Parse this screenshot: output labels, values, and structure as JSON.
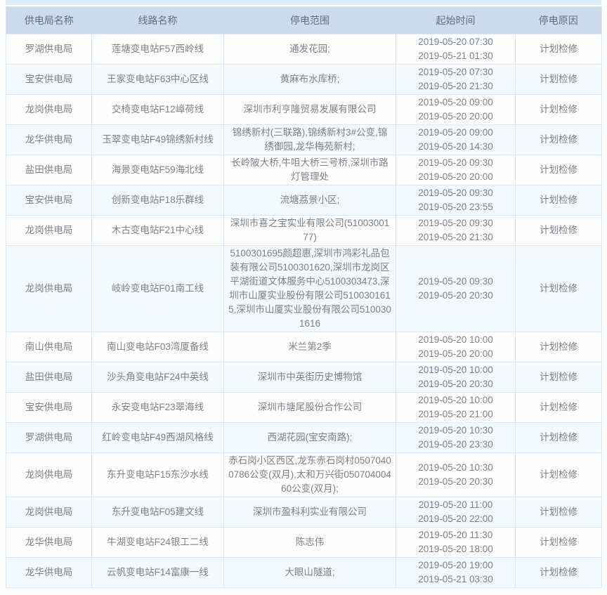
{
  "theme": {
    "header_bg": "#ccdbeb",
    "header_text": "#5f6e80",
    "row_alt_bg": "#f4f9fd",
    "border": "#dde7f1",
    "body_text": "#7d8187",
    "strip_bg": "#dcebf7"
  },
  "table": {
    "columns": [
      "供电局名称",
      "线路名称",
      "停电范围",
      "起始时间",
      "停电原因"
    ],
    "rows": [
      {
        "bureau": "罗湖供电局",
        "line": "莲塘变电站F57西岭线",
        "scope": "通发花园;",
        "start_time": "2019-05-20 07:30",
        "end_time": "2019-05-21 01:30",
        "reason": "计划检修"
      },
      {
        "bureau": "宝安供电局",
        "line": "王家变电站F63中心区线",
        "scope": "黄麻布水库桥;",
        "start_time": "2019-05-20 07:30",
        "end_time": "2019-05-20 21:30",
        "reason": "计划检修"
      },
      {
        "bureau": "龙岗供电局",
        "line": "交椅变电站F12嶂荷线",
        "scope": "深圳市利亨隆贸易发展有限公司",
        "start_time": "2019-05-20 09:00",
        "end_time": "2019-05-20 20:00",
        "reason": "计划检修"
      },
      {
        "bureau": "龙华供电局",
        "line": "玉翠变电站F49锦绣新村线",
        "scope": "锦绣新村(三联路),锦绣新村3#公变,锦绣御园,龙华梅苑新村;",
        "start_time": "2019-05-20 09:00",
        "end_time": "2019-05-20 14:30",
        "reason": "计划检修"
      },
      {
        "bureau": "盐田供电局",
        "line": "海景变电站F59海北线",
        "scope": "长岭陂大桥,牛咀大桥三号桥,深圳市路灯管理处",
        "start_time": "2019-05-20 09:30",
        "end_time": "2019-05-20 20:00",
        "reason": "计划检修"
      },
      {
        "bureau": "宝安供电局",
        "line": "创新变电站F18乐群线",
        "scope": "流塘荔景小区;",
        "start_time": "2019-05-20 09:30",
        "end_time": "2019-05-20 23:55",
        "reason": "计划检修"
      },
      {
        "bureau": "龙岗供电局",
        "line": "木古变电站F21中心线",
        "scope": "深圳市喜之宝实业有限公司(5100300177)",
        "start_time": "2019-05-20 09:30",
        "end_time": "2019-05-20 21:30",
        "reason": "计划检修"
      },
      {
        "bureau": "龙岗供电局",
        "line": "岐岭变电站F01南工线",
        "scope": "5100301695颜超惠,深圳市鸿彩礼品包装有限公司5100301620,深圳市龙岗区平湖街道文体服务中心5100303473,深圳市山厦实业股份有限公司5100301615,深圳市山厦实业股份有限公司5100301616",
        "start_time": "2019-05-20 09:30",
        "end_time": "2019-05-20 20:30",
        "reason": "计划检修"
      },
      {
        "bureau": "南山供电局",
        "line": "南山变电站F03湾厦备线",
        "scope": "米兰第2季",
        "start_time": "2019-05-20 10:00",
        "end_time": "2019-05-20 20:00",
        "reason": "计划检修"
      },
      {
        "bureau": "盐田供电局",
        "line": "沙头角变电站F24中英线",
        "scope": "深圳市中英街历史博物馆",
        "start_time": "2019-05-20 10:00",
        "end_time": "2019-05-20 20:30",
        "reason": "计划检修"
      },
      {
        "bureau": "宝安供电局",
        "line": "永安变电站F23翠海线",
        "scope": "深圳市塘尾股份合作公司",
        "start_time": "2019-05-20 10:00",
        "end_time": "2019-05-20 21:00",
        "reason": "计划检修"
      },
      {
        "bureau": "罗湖供电局",
        "line": "红岭变电站F49西湖风格线",
        "scope": "西湖花园(宝安南路);",
        "start_time": "2019-05-20 10:30",
        "end_time": "2019-05-20 23:30",
        "reason": "计划检修"
      },
      {
        "bureau": "龙岗供电局",
        "line": "东升变电站F15东沙水线",
        "scope": "赤石岗小区西区,龙东赤石岗村05070400786公变(双月),太和万兴街05070400460公变(双月);",
        "start_time": "2019-05-20 10:30",
        "end_time": "2019-05-20 20:30",
        "reason": "计划检修"
      },
      {
        "bureau": "龙岗供电局",
        "line": "东升变电站F05建文线",
        "scope": "深圳市盈科利实业有限公司",
        "start_time": "2019-05-20 11:00",
        "end_time": "2019-05-20 22:00",
        "reason": "计划检修"
      },
      {
        "bureau": "龙华供电局",
        "line": "牛湖变电站F24银工二线",
        "scope": "陈志伟",
        "start_time": "2019-05-20 11:30",
        "end_time": "2019-05-20 18:00",
        "reason": "计划检修"
      },
      {
        "bureau": "龙华供电局",
        "line": "云帆变电站F14富康一线",
        "scope": "大眼山隧道;",
        "start_time": "2019-05-20 19:00",
        "end_time": "2019-05-21 03:30",
        "reason": "计划检修"
      }
    ]
  }
}
